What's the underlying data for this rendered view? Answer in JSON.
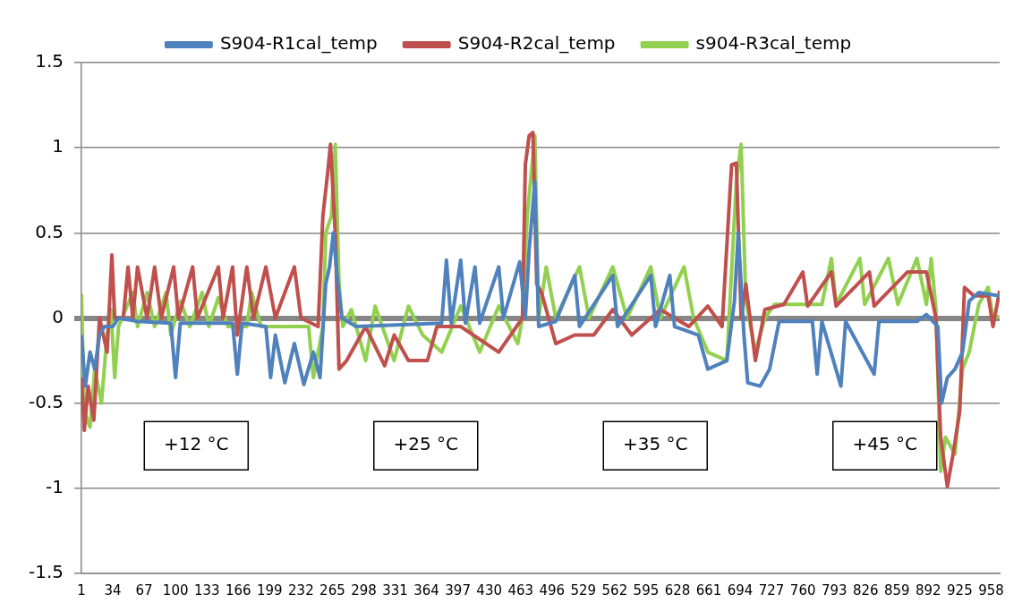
{
  "chart_data": {
    "type": "line",
    "legend": "top",
    "grid": "y",
    "xlim": [
      1,
      967
    ],
    "ylim": [
      -1.5,
      1.5
    ],
    "xticks": [
      1,
      34,
      67,
      100,
      133,
      166,
      199,
      232,
      265,
      298,
      331,
      364,
      397,
      430,
      463,
      496,
      529,
      562,
      595,
      628,
      661,
      694,
      727,
      760,
      793,
      826,
      859,
      892,
      925,
      958
    ],
    "yticks": [
      -1.5,
      -1,
      -0.5,
      0,
      0.5,
      1,
      1.5
    ],
    "annotations": [
      "+12 °C",
      "+25 °C",
      "+35 °C",
      "+45 °C"
    ],
    "series": [
      {
        "name": "S904-R1cal_temp",
        "color": "#4f81bd",
        "x": [
          1,
          5,
          10,
          15,
          20,
          25,
          34,
          40,
          60,
          95,
          100,
          105,
          160,
          165,
          170,
          195,
          200,
          205,
          215,
          225,
          235,
          245,
          252,
          258,
          262,
          266,
          270,
          275,
          290,
          380,
          385,
          390,
          400,
          405,
          415,
          420,
          440,
          445,
          462,
          468,
          472,
          478,
          482,
          500,
          520,
          525,
          560,
          565,
          600,
          605,
          620,
          625,
          650,
          660,
          680,
          688,
          692,
          698,
          702,
          715,
          725,
          735,
          770,
          775,
          780,
          800,
          805,
          835,
          840,
          880,
          890,
          902,
          906,
          912,
          920,
          928,
          935,
          945,
          967
        ],
        "values": [
          -0.1,
          -0.4,
          -0.2,
          -0.3,
          -0.1,
          -0.05,
          -0.05,
          0,
          -0.02,
          -0.03,
          -0.35,
          -0.03,
          -0.03,
          -0.33,
          -0.03,
          -0.05,
          -0.35,
          -0.1,
          -0.38,
          -0.15,
          -0.39,
          -0.2,
          -0.35,
          0.2,
          0.3,
          0.5,
          0.25,
          0,
          -0.05,
          -0.03,
          0.34,
          -0.03,
          0.34,
          -0.03,
          0.3,
          -0.03,
          0.3,
          0,
          0.33,
          0,
          0.4,
          0.8,
          -0.05,
          -0.02,
          0.25,
          -0.05,
          0.25,
          -0.05,
          0.25,
          -0.05,
          0.25,
          -0.05,
          -0.1,
          -0.3,
          -0.25,
          0.1,
          0.5,
          -0.1,
          -0.38,
          -0.4,
          -0.3,
          -0.02,
          -0.02,
          -0.33,
          -0.02,
          -0.4,
          -0.02,
          -0.33,
          -0.02,
          -0.02,
          0.02,
          -0.05,
          -0.5,
          -0.35,
          -0.3,
          -0.2,
          0.1,
          0.15,
          0.13
        ]
      },
      {
        "name": "S904-R2cal_temp",
        "color": "#c0504d",
        "x": [
          1,
          4,
          8,
          14,
          20,
          28,
          33,
          36,
          45,
          50,
          55,
          60,
          70,
          78,
          85,
          98,
          103,
          118,
          123,
          145,
          150,
          160,
          165,
          175,
          182,
          195,
          205,
          225,
          232,
          250,
          255,
          260,
          263,
          268,
          272,
          280,
          300,
          320,
          330,
          345,
          365,
          375,
          400,
          440,
          465,
          468,
          472,
          476,
          480,
          485,
          500,
          520,
          540,
          560,
          580,
          610,
          640,
          660,
          675,
          685,
          690,
          695,
          700,
          710,
          720,
          740,
          760,
          765,
          790,
          795,
          830,
          835,
          870,
          890,
          900,
          905,
          912,
          918,
          925,
          930,
          940,
          955,
          960,
          967
        ],
        "values": [
          -0.35,
          -0.66,
          -0.4,
          -0.6,
          0,
          -0.2,
          0.37,
          0,
          0,
          0.3,
          0,
          0.3,
          0,
          0.3,
          0,
          0.3,
          0,
          0.3,
          0,
          0.3,
          0,
          0.3,
          -0.1,
          0.3,
          0,
          0.3,
          0,
          0.3,
          0,
          -0.05,
          0.6,
          0.85,
          1.02,
          0.5,
          -0.3,
          -0.25,
          -0.05,
          -0.28,
          -0.1,
          -0.25,
          -0.25,
          -0.05,
          -0.05,
          -0.2,
          0,
          0.9,
          1.07,
          1.09,
          0.2,
          0.15,
          -0.15,
          -0.1,
          -0.1,
          0.05,
          -0.1,
          0.05,
          -0.05,
          0.07,
          -0.05,
          0.9,
          0.91,
          0,
          0.2,
          -0.25,
          0.05,
          0.08,
          0.27,
          0.07,
          0.27,
          0.07,
          0.27,
          0.07,
          0.27,
          0.27,
          0,
          -0.7,
          -0.99,
          -0.8,
          -0.55,
          0.18,
          0.13,
          0.13,
          -0.05,
          0.16
        ]
      },
      {
        "name": "s904-R3cal_temp",
        "color": "#92d050",
        "x": [
          1,
          4,
          10,
          15,
          22,
          28,
          32,
          36,
          40,
          55,
          60,
          70,
          78,
          90,
          95,
          105,
          115,
          128,
          135,
          145,
          155,
          175,
          180,
          190,
          240,
          245,
          255,
          258,
          264,
          268,
          272,
          276,
          285,
          300,
          310,
          330,
          345,
          360,
          380,
          400,
          420,
          440,
          460,
          465,
          470,
          478,
          482,
          490,
          500,
          525,
          535,
          560,
          575,
          600,
          610,
          635,
          645,
          660,
          680,
          690,
          695,
          700,
          710,
          720,
          730,
          780,
          790,
          795,
          820,
          825,
          850,
          860,
          880,
          890,
          895,
          900,
          905,
          910,
          920,
          928,
          935,
          945,
          955,
          960,
          967
        ],
        "values": [
          0.14,
          -0.55,
          -0.64,
          -0.3,
          -0.5,
          -0.1,
          0.05,
          -0.35,
          -0.05,
          0.15,
          -0.05,
          0.15,
          -0.05,
          0.15,
          -0.1,
          0.1,
          -0.05,
          0.15,
          -0.05,
          0.12,
          -0.05,
          -0.05,
          0.15,
          -0.05,
          -0.05,
          -0.35,
          -0.05,
          0.5,
          0.6,
          1.02,
          0.2,
          -0.05,
          0.05,
          -0.25,
          0.07,
          -0.25,
          0.07,
          -0.1,
          -0.2,
          0.07,
          -0.2,
          0.07,
          -0.15,
          0,
          0.6,
          1.07,
          0,
          0.3,
          0,
          0.3,
          0,
          0.3,
          0,
          0.3,
          0,
          0.3,
          0,
          -0.2,
          -0.25,
          0.8,
          1.02,
          0.1,
          -0.2,
          0,
          0.08,
          0.08,
          0.35,
          0.08,
          0.35,
          0.08,
          0.35,
          0.08,
          0.35,
          0.08,
          0.35,
          0.05,
          -0.9,
          -0.7,
          -0.8,
          -0.3,
          -0.2,
          0.08,
          0.18,
          0,
          0.01
        ]
      }
    ]
  }
}
